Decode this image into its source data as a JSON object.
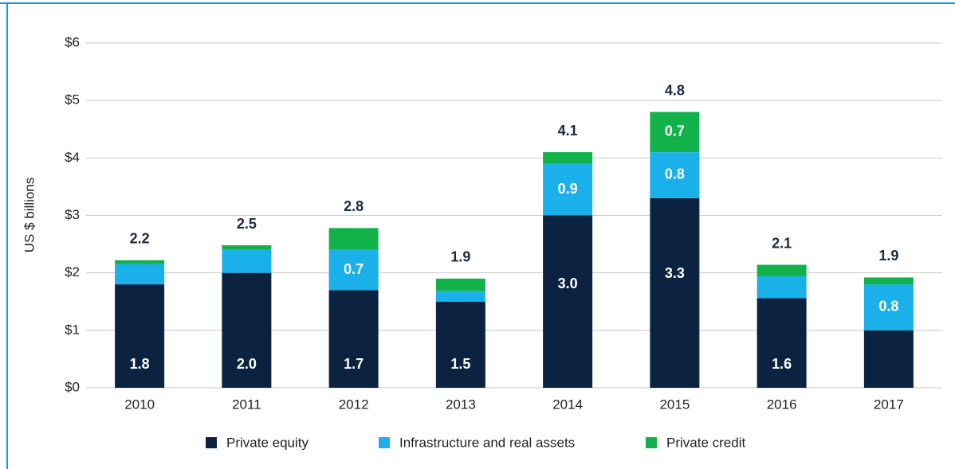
{
  "chart_data": {
    "type": "stacked_bar",
    "y_axis_label": "US $ billions",
    "categories": [
      "2010",
      "2011",
      "2012",
      "2013",
      "2014",
      "2015",
      "2016",
      "2017"
    ],
    "series": [
      {
        "name": "Private equity",
        "color": "#0b2341",
        "values": [
          1.8,
          2.0,
          1.7,
          1.5,
          3.0,
          3.3,
          1.56,
          1.0
        ],
        "value_labels": [
          "1.8",
          "2.0",
          "1.7",
          "1.5",
          "3.0",
          "3.3",
          "1.6",
          null
        ]
      },
      {
        "name": "Infrastructure and real assets",
        "color": "#1ab0ea",
        "values": [
          0.35,
          0.4,
          0.7,
          0.18,
          0.9,
          0.8,
          0.38,
          0.8
        ],
        "value_labels": [
          null,
          null,
          "0.7",
          null,
          "0.9",
          "0.8",
          null,
          "0.8"
        ]
      },
      {
        "name": "Private credit",
        "color": "#12b24b",
        "values": [
          0.07,
          0.08,
          0.38,
          0.22,
          0.2,
          0.7,
          0.2,
          0.12
        ],
        "value_labels": [
          null,
          null,
          null,
          null,
          null,
          "0.7",
          null,
          null
        ]
      }
    ],
    "totals": [
      2.2,
      2.5,
      2.8,
      1.9,
      4.1,
      4.8,
      2.1,
      1.9
    ],
    "ylim": [
      0,
      6
    ],
    "yticks": [
      {
        "value": 0,
        "label": "$0"
      },
      {
        "value": 1,
        "label": "$1"
      },
      {
        "value": 2,
        "label": "$2"
      },
      {
        "value": 3,
        "label": "$3"
      },
      {
        "value": 4,
        "label": "$4"
      },
      {
        "value": 5,
        "label": "$5"
      },
      {
        "value": 6,
        "label": "$6"
      }
    ],
    "grid": true,
    "legend": "bottom"
  }
}
